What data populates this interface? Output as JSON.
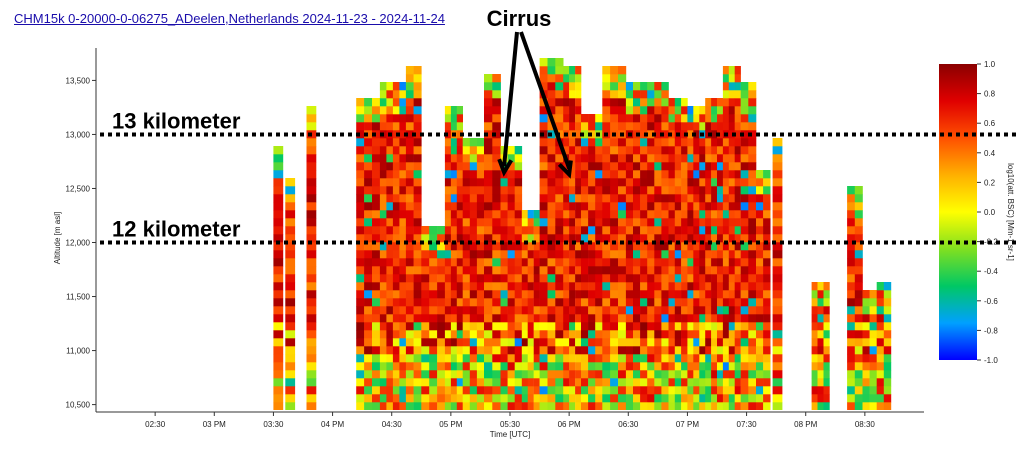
{
  "page": {
    "title_link": "CHM15k 0-20000-0-06275_ADeelen,Netherlands 2024-11-23 - 2024-11-24"
  },
  "chart_data": {
    "type": "heatmap",
    "xlabel": "Time [UTC]",
    "ylabel": "Altitude [m asl]",
    "colorbar_label": "log10(att. BSC) [Mm-1 sr-1]",
    "x_ticks": [
      "02:30",
      "03 PM",
      "03:30",
      "04 PM",
      "04:30",
      "05 PM",
      "05:30",
      "06 PM",
      "06:30",
      "07 PM",
      "07:30",
      "08 PM",
      "08:30"
    ],
    "x_tick_hours": [
      14.5,
      15,
      15.5,
      16,
      16.5,
      17,
      17.5,
      18,
      18.5,
      19,
      19.5,
      20,
      20.5
    ],
    "xlim": [
      14.0,
      21.0
    ],
    "y_ticks": [
      10500,
      11000,
      11500,
      12000,
      12500,
      13000,
      13500
    ],
    "y_tick_labels": [
      "10,500",
      "11,000",
      "11,500",
      "12,000",
      "12,500",
      "13,000",
      "13,500"
    ],
    "ylim": [
      10450,
      13800
    ],
    "colorbar_ticks": [
      "1.0",
      "0.8",
      "0.6",
      "0.4",
      "0.2",
      "0.0",
      "-0.2",
      "-0.4",
      "-0.6",
      "-0.8",
      "-1.0"
    ],
    "colorbar_range": [
      -1.0,
      1.0
    ],
    "colorscale": [
      "#0000ff",
      "#00a0ff",
      "#00c864",
      "#80e020",
      "#ffff00",
      "#ffb000",
      "#ff5000",
      "#e00000",
      "#8b0000"
    ],
    "cloud_columns": [
      {
        "start": 15.5,
        "end": 15.58,
        "top": 12950
      },
      {
        "start": 15.6,
        "end": 15.68,
        "top": 12600
      },
      {
        "start": 15.78,
        "end": 15.86,
        "top": 13300
      },
      {
        "start": 16.2,
        "end": 16.4,
        "top": 13400
      },
      {
        "start": 16.4,
        "end": 16.62,
        "top": 13500
      },
      {
        "start": 16.62,
        "end": 16.75,
        "top": 13650
      },
      {
        "start": 16.75,
        "end": 16.95,
        "top": 12200
      },
      {
        "start": 16.95,
        "end": 17.1,
        "top": 13300
      },
      {
        "start": 17.1,
        "end": 17.28,
        "top": 13000
      },
      {
        "start": 17.28,
        "end": 17.42,
        "top": 13600
      },
      {
        "start": 17.42,
        "end": 17.6,
        "top": 12950
      },
      {
        "start": 17.6,
        "end": 17.75,
        "top": 12300
      },
      {
        "start": 17.75,
        "end": 17.95,
        "top": 13750
      },
      {
        "start": 17.95,
        "end": 18.1,
        "top": 13650
      },
      {
        "start": 18.1,
        "end": 18.28,
        "top": 13200
      },
      {
        "start": 18.28,
        "end": 18.48,
        "top": 13650
      },
      {
        "start": 18.48,
        "end": 18.66,
        "top": 13500
      },
      {
        "start": 18.66,
        "end": 18.84,
        "top": 13550
      },
      {
        "start": 18.84,
        "end": 19.0,
        "top": 13400
      },
      {
        "start": 19.0,
        "end": 19.15,
        "top": 13300
      },
      {
        "start": 19.15,
        "end": 19.3,
        "top": 13400
      },
      {
        "start": 19.3,
        "end": 19.45,
        "top": 13650
      },
      {
        "start": 19.45,
        "end": 19.58,
        "top": 13500
      },
      {
        "start": 19.58,
        "end": 19.7,
        "top": 12700
      },
      {
        "start": 19.72,
        "end": 19.8,
        "top": 13000
      },
      {
        "start": 20.05,
        "end": 20.2,
        "top": 11700
      },
      {
        "start": 20.35,
        "end": 20.48,
        "top": 12550
      },
      {
        "start": 20.48,
        "end": 20.6,
        "top": 11600
      },
      {
        "start": 20.6,
        "end": 20.72,
        "top": 11650
      }
    ],
    "colorbar_tick_values": [
      1.0,
      0.8,
      0.6,
      0.4,
      0.2,
      0.0,
      -0.2,
      -0.4,
      -0.6,
      -0.8,
      -1.0
    ],
    "annotations": {
      "cirrus_label": "Cirrus",
      "line_13_label": "13 kilometer",
      "line_12_label": "12 kilometer",
      "line_13_altitude": 13000,
      "line_12_altitude": 12000,
      "cirrus_arrow_targets": [
        {
          "hour": 17.45,
          "altitude": 12650
        },
        {
          "hour": 18.0,
          "altitude": 12630
        }
      ]
    }
  }
}
